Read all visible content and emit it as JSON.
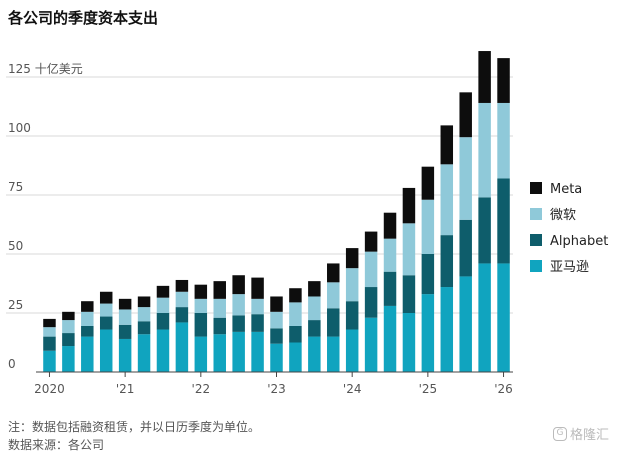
{
  "title": "各公司的季度资本支出",
  "note": "注：数据包括融资租赁，并以日历季度为单位。",
  "source": "数据来源：各公司",
  "watermark": "格隆汇",
  "colors": {
    "Meta": "#0d0d0d",
    "微软": "#8fc9d9",
    "Alphabet": "#0e5d6b",
    "亚马逊": "#10a4bf",
    "grid": "#d9d9d9"
  },
  "chart_data": {
    "type": "bar",
    "stacked": true,
    "ylabel": "125 十亿美元",
    "ylim": [
      0,
      135
    ],
    "yticks": [
      0,
      25,
      50,
      75,
      100,
      125
    ],
    "ytick_labels": [
      "0",
      "25",
      "50",
      "75",
      "100",
      "125"
    ],
    "x_tick_labels": [
      {
        "label": "2020",
        "index": 0
      },
      {
        "label": "'21",
        "index": 4
      },
      {
        "label": "'22",
        "index": 8
      },
      {
        "label": "'23",
        "index": 12
      },
      {
        "label": "'24",
        "index": 16
      },
      {
        "label": "'25",
        "index": 20
      },
      {
        "label": "'26",
        "index": 24
      }
    ],
    "grid": true,
    "legend_position": "right",
    "categories": [
      "2020Q1",
      "2020Q2",
      "2020Q3",
      "2020Q4",
      "2021Q1",
      "2021Q2",
      "2021Q3",
      "2021Q4",
      "2022Q1",
      "2022Q2",
      "2022Q3",
      "2022Q4",
      "2023Q1",
      "2023Q2",
      "2023Q3",
      "2023Q4",
      "2024Q1",
      "2024Q2",
      "2024Q3",
      "2024Q4",
      "2025Q1",
      "2025Q2",
      "2025Q3",
      "2025Q4",
      "2026Q1"
    ],
    "series": [
      {
        "name": "亚马逊",
        "values": [
          9,
          11,
          15,
          18,
          14,
          16,
          18,
          21,
          15,
          16,
          17,
          17,
          12,
          12.5,
          15,
          15,
          18,
          23,
          28,
          25,
          33,
          36,
          40.5,
          46,
          46
        ]
      },
      {
        "name": "Alphabet",
        "values": [
          6,
          5.5,
          4.5,
          5.5,
          6,
          5.5,
          7,
          6.5,
          10,
          7,
          7,
          7.5,
          6.5,
          7,
          7,
          12,
          12,
          13,
          14.5,
          16,
          17,
          22,
          24,
          28,
          36
        ]
      },
      {
        "name": "微软",
        "values": [
          4,
          5.5,
          6,
          5.5,
          6.5,
          6,
          6.5,
          6.5,
          6,
          8,
          9,
          6.5,
          7,
          10,
          10,
          11,
          14,
          15,
          14,
          22,
          23,
          30,
          35,
          40,
          32
        ]
      },
      {
        "name": "Meta",
        "values": [
          3.5,
          3.5,
          4.5,
          5,
          4.5,
          4.5,
          5,
          5,
          6,
          7.5,
          8,
          9,
          6.5,
          6,
          6.5,
          8,
          8.5,
          8.5,
          11,
          15,
          14,
          16.5,
          19,
          22,
          19
        ]
      }
    ],
    "legend_order": [
      "Meta",
      "微软",
      "Alphabet",
      "亚马逊"
    ]
  }
}
